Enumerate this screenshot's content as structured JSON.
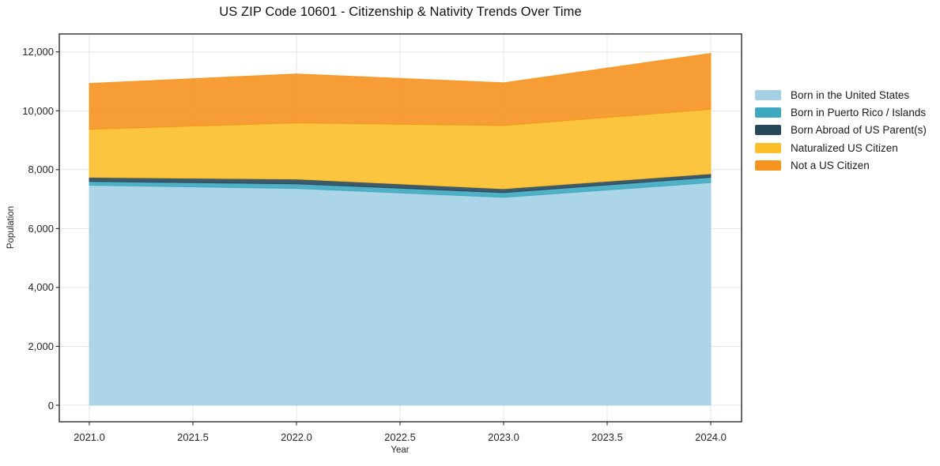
{
  "figure": {
    "background": "#ffffff"
  },
  "chart_data": {
    "type": "area",
    "stacked": true,
    "title": "US ZIP Code 10601 - Citizenship & Nativity Trends Over Time",
    "xlabel": "Year",
    "ylabel": "Population",
    "x": [
      2021,
      2022,
      2023,
      2024
    ],
    "series": [
      {
        "name": "Born in the United States",
        "color": "#a3d0e4",
        "values": [
          7470,
          7360,
          7060,
          7560
        ]
      },
      {
        "name": "Born in Puerto Rico / Islands",
        "color": "#3da8c0",
        "values": [
          130,
          160,
          160,
          180
        ]
      },
      {
        "name": "Born Abroad of US Parent(s)",
        "color": "#27485a",
        "values": [
          140,
          160,
          130,
          120
        ]
      },
      {
        "name": "Naturalized US Citizen",
        "color": "#fcbf2a",
        "values": [
          1630,
          1910,
          2150,
          2190
        ]
      },
      {
        "name": "Not a US Citizen",
        "color": "#f5941f",
        "values": [
          1560,
          1660,
          1450,
          1900
        ]
      }
    ],
    "totals": [
      10930,
      11250,
      10950,
      11950
    ],
    "xticks": [
      2021.0,
      2021.5,
      2022.0,
      2022.5,
      2023.0,
      2023.5,
      2024.0
    ],
    "xtick_labels": [
      "2021.0",
      "2021.5",
      "2022.0",
      "2022.5",
      "2023.0",
      "2023.5",
      "2024.0"
    ],
    "yticks": [
      0,
      2000,
      4000,
      6000,
      8000,
      10000,
      12000
    ],
    "ytick_labels": [
      "0",
      "2,000",
      "4,000",
      "6,000",
      "8,000",
      "10,000",
      "12,000"
    ],
    "xlim": [
      2021,
      2024
    ],
    "ylim": [
      0,
      12000
    ],
    "grid": true,
    "legend_position": "right-outside"
  }
}
